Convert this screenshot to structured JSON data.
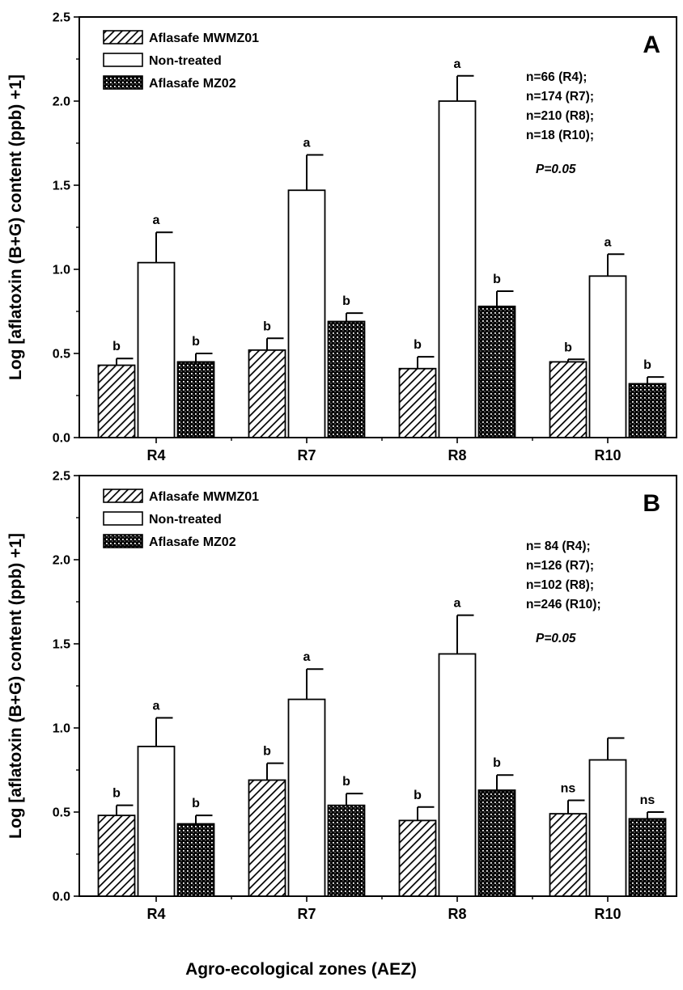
{
  "chart_data": [
    {
      "type": "bar",
      "panel": "A",
      "categories": [
        "R4",
        "R7",
        "R8",
        "R10"
      ],
      "ylabel": "Log [aflatoxin (B+G) content (ppb) +1]",
      "ylim": [
        0,
        2.5
      ],
      "yticks": [
        "0.0",
        "0.5",
        "1.0",
        "1.5",
        "2.0",
        "2.5"
      ],
      "series": [
        {
          "name": "Aflasafe MWMZ01",
          "pattern": "hatch",
          "values": [
            0.43,
            0.52,
            0.41,
            0.45
          ],
          "errors": [
            0.04,
            0.07,
            0.07,
            0.015
          ],
          "letters": [
            "b",
            "b",
            "b",
            "b"
          ]
        },
        {
          "name": "Non-treated",
          "pattern": "open",
          "values": [
            1.04,
            1.47,
            2.0,
            0.96
          ],
          "errors": [
            0.18,
            0.21,
            0.15,
            0.13
          ],
          "letters": [
            "a",
            "a",
            "a",
            "a"
          ]
        },
        {
          "name": "Aflasafe MZ02",
          "pattern": "cross",
          "values": [
            0.45,
            0.69,
            0.78,
            0.32
          ],
          "errors": [
            0.05,
            0.05,
            0.09,
            0.04
          ],
          "letters": [
            "b",
            "b",
            "b",
            "b"
          ]
        }
      ],
      "annotations": [
        "n=66  (R4);",
        "n=174 (R7);",
        "n=210 (R8);",
        "n=18   (R10);"
      ],
      "p_value": "P=0.05",
      "legend_position": "top-left"
    },
    {
      "type": "bar",
      "panel": "B",
      "categories": [
        "R4",
        "R7",
        "R8",
        "R10"
      ],
      "ylabel": "Log [aflatoxin (B+G) content (ppb) +1]",
      "ylim": [
        0,
        2.5
      ],
      "yticks": [
        "0.0",
        "0.5",
        "1.0",
        "1.5",
        "2.0",
        "2.5"
      ],
      "series": [
        {
          "name": "Aflasafe MWMZ01",
          "pattern": "hatch",
          "values": [
            0.48,
            0.69,
            0.45,
            0.49
          ],
          "errors": [
            0.06,
            0.1,
            0.08,
            0.08
          ],
          "letters": [
            "b",
            "b",
            "b",
            "ns"
          ]
        },
        {
          "name": "Non-treated",
          "pattern": "open",
          "values": [
            0.89,
            1.17,
            1.44,
            0.81
          ],
          "errors": [
            0.17,
            0.18,
            0.23,
            0.13
          ],
          "letters": [
            "a",
            "a",
            "a",
            ""
          ]
        },
        {
          "name": "Aflasafe MZ02",
          "pattern": "cross",
          "values": [
            0.43,
            0.54,
            0.63,
            0.46
          ],
          "errors": [
            0.05,
            0.07,
            0.09,
            0.04
          ],
          "letters": [
            "b",
            "b",
            "b",
            "ns"
          ]
        }
      ],
      "annotations": [
        "n= 84 (R4);",
        "n=126 (R7);",
        "n=102 (R8);",
        "n=246 (R10);"
      ],
      "p_value": "P=0.05",
      "legend_position": "top-left"
    }
  ],
  "xlabel": "Agro-ecological zones (AEZ)"
}
